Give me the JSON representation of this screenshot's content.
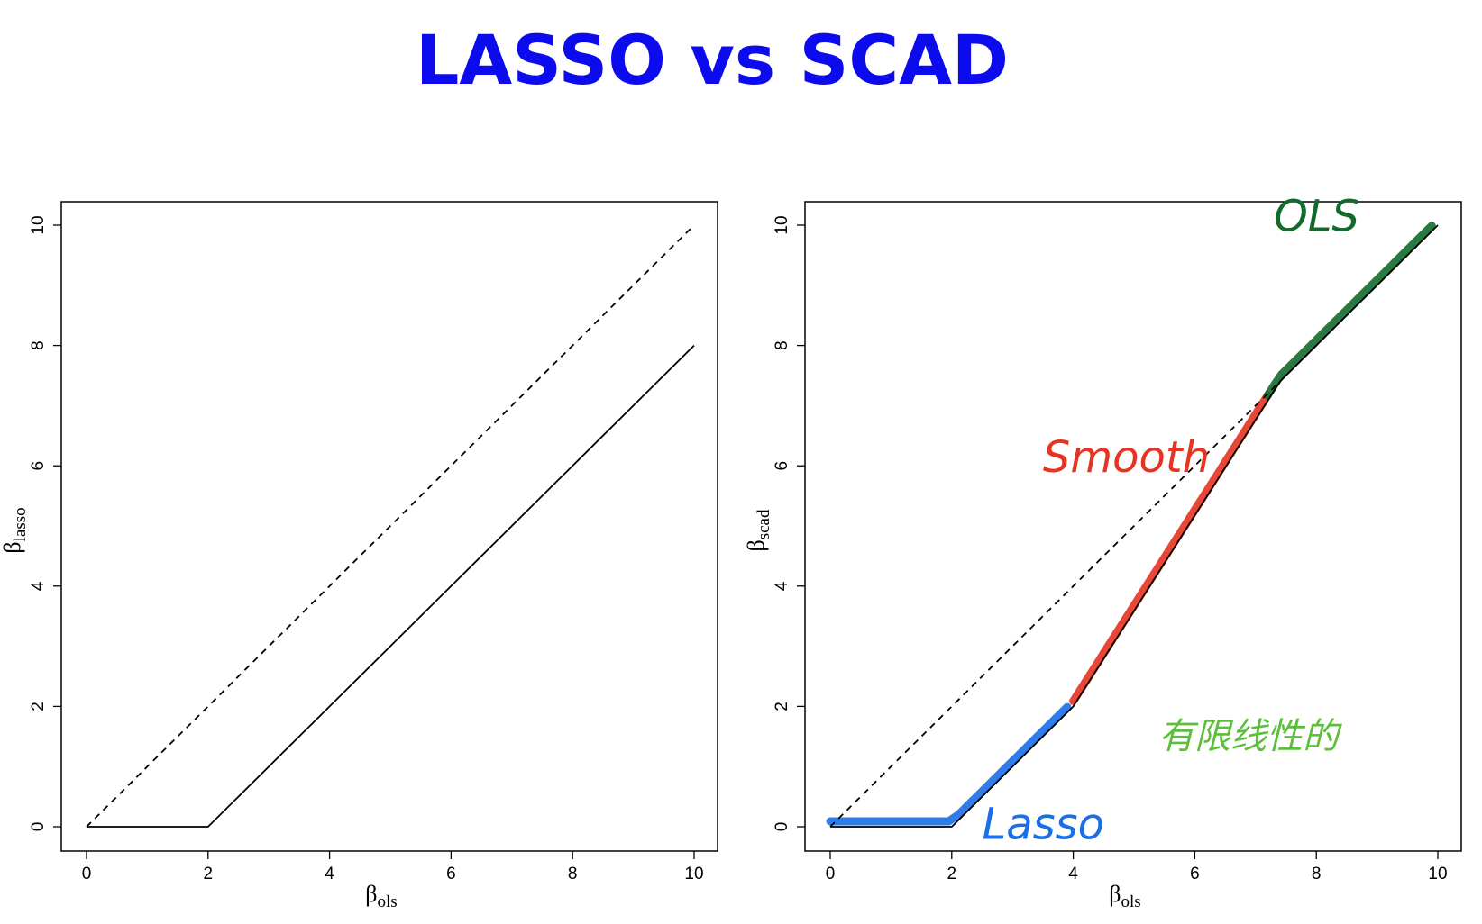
{
  "title": "LASSO vs SCAD",
  "colors": {
    "title": "#0b0bee",
    "lasso_ann": "#1a6fe8",
    "smooth_ann": "#e63322",
    "ols_ann": "#126b2c",
    "note_ann": "#5bbf3a"
  },
  "chart_data": [
    {
      "type": "line",
      "id": "lasso",
      "xlabel": "β",
      "xlabel_sub": "ols",
      "ylabel": "β",
      "ylabel_sub": "lasso",
      "xlim": [
        0,
        10
      ],
      "ylim": [
        0,
        10
      ],
      "xticks": [
        0,
        2,
        4,
        6,
        8,
        10
      ],
      "yticks": [
        0,
        2,
        4,
        6,
        8,
        10
      ],
      "grid": false,
      "series": [
        {
          "name": "identity",
          "style": "dashed",
          "x": [
            0,
            10
          ],
          "y": [
            0,
            10
          ]
        },
        {
          "name": "lasso",
          "style": "solid",
          "x": [
            0,
            2,
            10
          ],
          "y": [
            0,
            0,
            8
          ]
        }
      ]
    },
    {
      "type": "line",
      "id": "scad",
      "xlabel": "β",
      "xlabel_sub": "ols",
      "ylabel": "β",
      "ylabel_sub": "scad",
      "xlim": [
        0,
        10
      ],
      "ylim": [
        0,
        10
      ],
      "xticks": [
        0,
        2,
        4,
        6,
        8,
        10
      ],
      "yticks": [
        0,
        2,
        4,
        6,
        8,
        10
      ],
      "grid": false,
      "series": [
        {
          "name": "identity",
          "style": "dashed",
          "x": [
            0,
            10
          ],
          "y": [
            0,
            10
          ]
        },
        {
          "name": "scad",
          "style": "solid",
          "x": [
            0,
            2,
            4,
            7.4,
            10
          ],
          "y": [
            0,
            0,
            2,
            7.4,
            10
          ]
        }
      ],
      "annotations": [
        {
          "text": "Lasso",
          "color_key": "lasso_ann",
          "x": 2.5,
          "y": -0.2,
          "x_range": [
            0,
            3.9
          ]
        },
        {
          "text": "Smooth",
          "color_key": "smooth_ann",
          "x": 3.5,
          "y": 5.9,
          "x_range": [
            4,
            7.2
          ]
        },
        {
          "text": "OLS",
          "color_key": "ols_ann",
          "x": 7.3,
          "y": 9.9,
          "x_range": [
            7.2,
            9.9
          ]
        },
        {
          "text": "有限线性的",
          "color_key": "note_ann",
          "x": 5.4,
          "y": 1.3
        }
      ]
    }
  ]
}
